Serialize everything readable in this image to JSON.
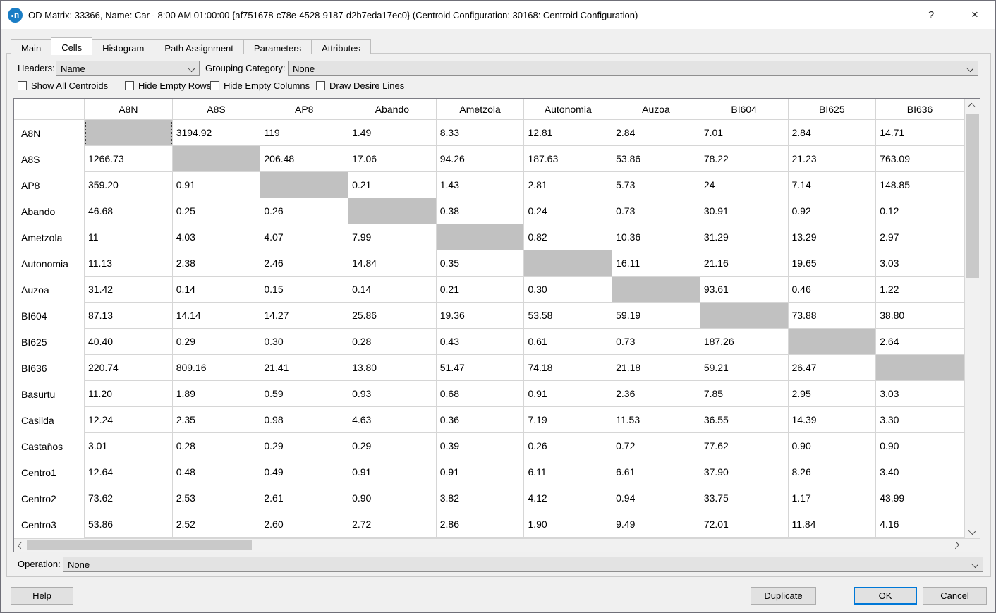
{
  "window": {
    "logo_text": "n",
    "title": "OD Matrix: 33366, Name: Car - 8:00 AM 01:00:00  {af751678-c78e-4528-9187-d2b7eda17ec0} (Centroid Configuration: 30168: Centroid Configuration)",
    "help_glyph": "?",
    "close_glyph": "×"
  },
  "tabs": [
    "Main",
    "Cells",
    "Histogram",
    "Path Assignment",
    "Parameters",
    "Attributes"
  ],
  "active_tab": "Cells",
  "controls": {
    "headers_label": "Headers:",
    "headers_value": "Name",
    "grouping_label": "Grouping Category:",
    "grouping_value": "None",
    "checkboxes": [
      "Show All Centroids",
      "Hide Empty Rows",
      "Hide Empty Columns",
      "Draw Desire Lines"
    ],
    "checkbox_states": [
      false,
      false,
      false,
      false
    ]
  },
  "matrix": {
    "columns": [
      "A8N",
      "A8S",
      "AP8",
      "Abando",
      "Ametzola",
      "Autonomia",
      "Auzoa",
      "BI604",
      "BI625",
      "BI636"
    ],
    "rows": [
      {
        "name": "A8N",
        "values": [
          null,
          "3194.92",
          "119",
          "1.49",
          "8.33",
          "12.81",
          "2.84",
          "7.01",
          "2.84",
          "14.71"
        ]
      },
      {
        "name": "A8S",
        "values": [
          "1266.73",
          null,
          "206.48",
          "17.06",
          "94.26",
          "187.63",
          "53.86",
          "78.22",
          "21.23",
          "763.09"
        ]
      },
      {
        "name": "AP8",
        "values": [
          "359.20",
          "0.91",
          null,
          "0.21",
          "1.43",
          "2.81",
          "5.73",
          "24",
          "7.14",
          "148.85"
        ]
      },
      {
        "name": "Abando",
        "values": [
          "46.68",
          "0.25",
          "0.26",
          null,
          "0.38",
          "0.24",
          "0.73",
          "30.91",
          "0.92",
          "0.12"
        ]
      },
      {
        "name": "Ametzola",
        "values": [
          "11",
          "4.03",
          "4.07",
          "7.99",
          null,
          "0.82",
          "10.36",
          "31.29",
          "13.29",
          "2.97"
        ]
      },
      {
        "name": "Autonomia",
        "values": [
          "11.13",
          "2.38",
          "2.46",
          "14.84",
          "0.35",
          null,
          "16.11",
          "21.16",
          "19.65",
          "3.03"
        ]
      },
      {
        "name": "Auzoa",
        "values": [
          "31.42",
          "0.14",
          "0.15",
          "0.14",
          "0.21",
          "0.30",
          null,
          "93.61",
          "0.46",
          "1.22"
        ]
      },
      {
        "name": "BI604",
        "values": [
          "87.13",
          "14.14",
          "14.27",
          "25.86",
          "19.36",
          "53.58",
          "59.19",
          null,
          "73.88",
          "38.80"
        ]
      },
      {
        "name": "BI625",
        "values": [
          "40.40",
          "0.29",
          "0.30",
          "0.28",
          "0.43",
          "0.61",
          "0.73",
          "187.26",
          null,
          "2.64"
        ]
      },
      {
        "name": "BI636",
        "values": [
          "220.74",
          "809.16",
          "21.41",
          "13.80",
          "51.47",
          "74.18",
          "21.18",
          "59.21",
          "26.47",
          null
        ]
      },
      {
        "name": "Basurtu",
        "values": [
          "11.20",
          "1.89",
          "0.59",
          "0.93",
          "0.68",
          "0.91",
          "2.36",
          "7.85",
          "2.95",
          "3.03"
        ]
      },
      {
        "name": "Casilda",
        "values": [
          "12.24",
          "2.35",
          "0.98",
          "4.63",
          "0.36",
          "7.19",
          "11.53",
          "36.55",
          "14.39",
          "3.30"
        ]
      },
      {
        "name": "Castaños",
        "values": [
          "3.01",
          "0.28",
          "0.29",
          "0.29",
          "0.39",
          "0.26",
          "0.72",
          "77.62",
          "0.90",
          "0.90"
        ]
      },
      {
        "name": "Centro1",
        "values": [
          "12.64",
          "0.48",
          "0.49",
          "0.91",
          "0.91",
          "6.11",
          "6.61",
          "37.90",
          "8.26",
          "3.40"
        ]
      },
      {
        "name": "Centro2",
        "values": [
          "73.62",
          "2.53",
          "2.61",
          "0.90",
          "3.82",
          "4.12",
          "0.94",
          "33.75",
          "1.17",
          "43.99"
        ]
      },
      {
        "name": "Centro3",
        "values": [
          "53.86",
          "2.52",
          "2.60",
          "2.72",
          "2.86",
          "1.90",
          "9.49",
          "72.01",
          "11.84",
          "4.16"
        ]
      }
    ],
    "selected_cell": {
      "row": "A8N",
      "column": "A8N"
    }
  },
  "operation": {
    "label": "Operation:",
    "value": "None"
  },
  "buttons": {
    "help": "Help",
    "duplicate": "Duplicate",
    "ok": "OK",
    "cancel": "Cancel"
  },
  "colors": {
    "accent": "#0078d7",
    "diagonal_cell": "#c1c1c1",
    "logo_blue": "#1a7dc5",
    "titlebar_bg": "#ffffff",
    "dialog_bg": "#f0f0f0"
  }
}
